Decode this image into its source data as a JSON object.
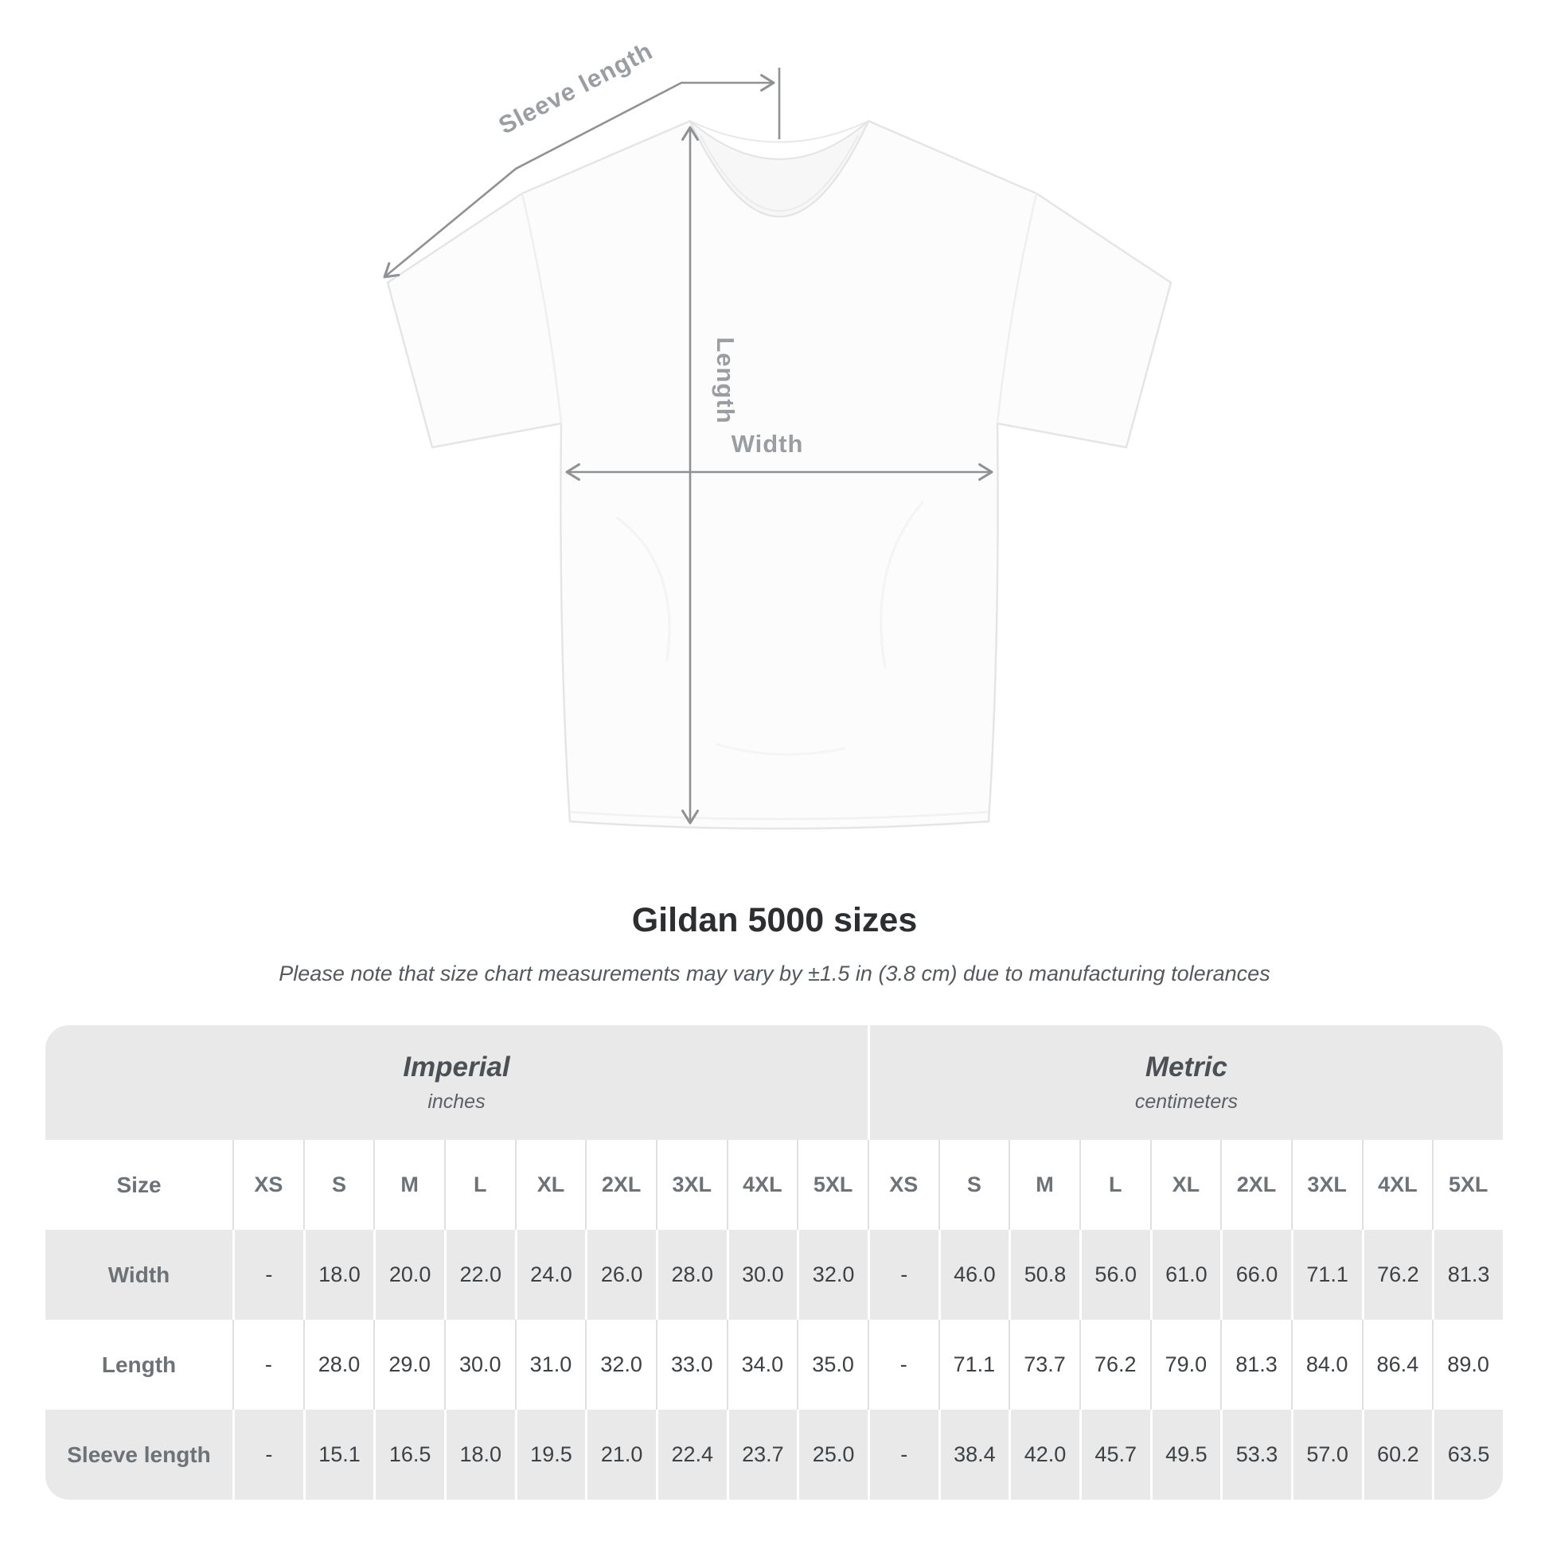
{
  "figure": {
    "sleeve_length_label": "Sleeve length",
    "length_label": "Length",
    "width_label": "Width"
  },
  "title": "Gildan 5000 sizes",
  "note": "Please note that size chart measurements may vary by ±1.5 in (3.8 cm) due to manufacturing tolerances",
  "colors": {
    "annotation_gray": "#8f9194",
    "table_band_gray": "#e9e9e9",
    "label_gray": "#6d7276",
    "value_dark": "#3e4144",
    "title_dark": "#2c2e30"
  },
  "chart_data": {
    "type": "table",
    "title": "Gildan 5000 sizes",
    "subtitle": "Please note that size chart measurements may vary by ±1.5 in (3.8 cm) due to manufacturing tolerances",
    "groups": [
      {
        "label": "Imperial",
        "unit": "inches"
      },
      {
        "label": "Metric",
        "unit": "centimeters"
      }
    ],
    "size_header": "Size",
    "sizes": [
      "XS",
      "S",
      "M",
      "L",
      "XL",
      "2XL",
      "3XL",
      "4XL",
      "5XL"
    ],
    "rows": [
      {
        "label": "Width",
        "imperial": [
          "-",
          "18.0",
          "20.0",
          "22.0",
          "24.0",
          "26.0",
          "28.0",
          "30.0",
          "32.0"
        ],
        "metric": [
          "-",
          "46.0",
          "50.8",
          "56.0",
          "61.0",
          "66.0",
          "71.1",
          "76.2",
          "81.3"
        ]
      },
      {
        "label": "Length",
        "imperial": [
          "-",
          "28.0",
          "29.0",
          "30.0",
          "31.0",
          "32.0",
          "33.0",
          "34.0",
          "35.0"
        ],
        "metric": [
          "-",
          "71.1",
          "73.7",
          "76.2",
          "79.0",
          "81.3",
          "84.0",
          "86.4",
          "89.0"
        ]
      },
      {
        "label": "Sleeve length",
        "imperial": [
          "-",
          "15.1",
          "16.5",
          "18.0",
          "19.5",
          "21.0",
          "22.4",
          "23.7",
          "25.0"
        ],
        "metric": [
          "-",
          "38.4",
          "42.0",
          "45.7",
          "49.5",
          "53.3",
          "57.0",
          "60.2",
          "63.5"
        ]
      }
    ]
  }
}
